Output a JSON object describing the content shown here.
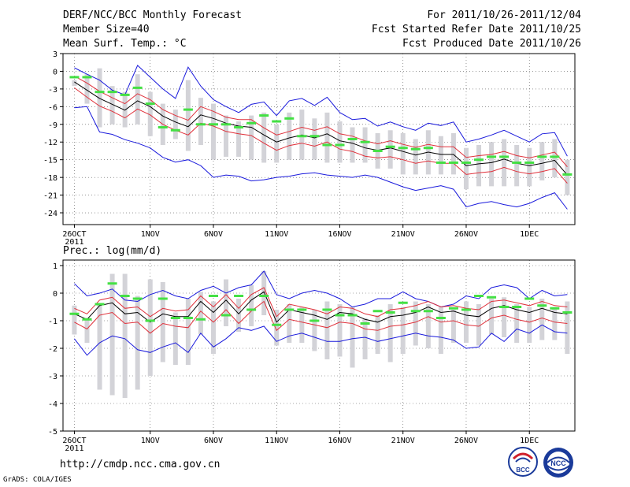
{
  "header": {
    "title": "DERF/NCC/BCC Monthly Forecast",
    "member_size": "Member Size=40",
    "variable": "Mean Surf. Temp.: °C",
    "period": "For 2011/10/26-2011/12/04",
    "start_ref": "Fcst Started Refer Date 2011/10/25",
    "produced": "Fcst Produced Date 2011/10/26"
  },
  "footer": {
    "url": "http://cmdp.ncc.cma.gov.cn",
    "grads": "GrADS: COLA/IGES",
    "logo_bcc": "BCC",
    "logo_ncc": "NCC"
  },
  "colors": {
    "box": "#d3d3d8",
    "green": "#44e044",
    "red": "#e0303a",
    "blue": "#1a1adc",
    "mean": "#000000"
  },
  "chart_data": [
    {
      "type": "box-line",
      "title": "Mean Surf. Temp.: °C",
      "x_tick_labels": [
        "26OCT",
        "1NOV",
        "6NOV",
        "11NOV",
        "16NOV",
        "21NOV",
        "26NOV",
        "1DEC"
      ],
      "x_year_label": "2011",
      "ylim": [
        -26,
        3
      ],
      "y_ticks": [
        3,
        0,
        -3,
        -6,
        -9,
        -12,
        -15,
        -18,
        -21,
        -24
      ],
      "days": 40,
      "ensemble_mean": [
        -1.8,
        -3.2,
        -4.6,
        -5.6,
        -6.6,
        -5.0,
        -6.0,
        -7.6,
        -8.6,
        -9.4,
        -7.4,
        -8.0,
        -8.8,
        -9.3,
        -9.5,
        -10.8,
        -12.0,
        -11.3,
        -10.8,
        -11.3,
        -10.6,
        -11.8,
        -12.2,
        -13.0,
        -13.4,
        -13.0,
        -13.6,
        -14.2,
        -13.7,
        -14.1,
        -14.1,
        -16.0,
        -15.7,
        -15.5,
        -14.9,
        -15.6,
        -16.0,
        -15.6,
        -15.1,
        -17.6
      ],
      "upper_bound": [
        -0.8,
        -2.0,
        -3.4,
        -4.5,
        -5.5,
        -3.8,
        -4.8,
        -6.5,
        -7.5,
        -8.3,
        -6.0,
        -6.8,
        -7.8,
        -8.2,
        -8.2,
        -9.6,
        -10.8,
        -10.2,
        -9.5,
        -10.0,
        -9.4,
        -10.6,
        -11.0,
        -11.8,
        -12.3,
        -11.8,
        -12.4,
        -12.9,
        -12.4,
        -12.8,
        -12.8,
        -14.6,
        -14.3,
        -14.1,
        -13.6,
        -14.3,
        -14.7,
        -14.2,
        -13.7,
        -16.2
      ],
      "lower_bound": [
        -2.8,
        -4.4,
        -5.9,
        -6.8,
        -7.9,
        -6.4,
        -7.4,
        -9.0,
        -10.0,
        -10.8,
        -8.8,
        -9.3,
        -10.2,
        -10.6,
        -10.9,
        -12.2,
        -13.4,
        -12.6,
        -12.2,
        -12.7,
        -12.0,
        -13.2,
        -13.6,
        -14.4,
        -14.7,
        -14.5,
        -15.0,
        -15.6,
        -15.2,
        -15.6,
        -15.6,
        -17.5,
        -17.2,
        -17.0,
        -16.3,
        -17.0,
        -17.4,
        -17.0,
        -16.5,
        -19.0
      ],
      "ensemble_max": [
        0.6,
        -0.5,
        -1.5,
        -3.2,
        -4.0,
        1.0,
        -1.0,
        -3.0,
        -4.6,
        0.7,
        -2.5,
        -4.8,
        -6.0,
        -7.0,
        -5.6,
        -5.2,
        -7.5,
        -5.0,
        -4.6,
        -5.8,
        -4.4,
        -7.0,
        -8.2,
        -8.0,
        -9.3,
        -8.6,
        -9.4,
        -10.0,
        -8.8,
        -9.2,
        -8.6,
        -12.0,
        -11.5,
        -10.8,
        -10.0,
        -11.0,
        -12.0,
        -10.6,
        -10.4,
        -14.4
      ],
      "ensemble_min": [
        -6.2,
        -6.0,
        -10.3,
        -10.7,
        -11.6,
        -12.2,
        -13.0,
        -14.6,
        -15.4,
        -15.0,
        -16.0,
        -18.0,
        -17.6,
        -17.8,
        -18.6,
        -18.4,
        -18.0,
        -17.8,
        -17.4,
        -17.2,
        -17.6,
        -17.8,
        -18.0,
        -17.6,
        -18.0,
        -18.8,
        -19.6,
        -20.2,
        -19.8,
        -19.4,
        -20.0,
        -23.0,
        -22.4,
        -22.1,
        -22.6,
        -23.0,
        -22.4,
        -21.4,
        -20.6,
        -23.4
      ],
      "box_top": [
        -1.5,
        -0.5,
        0.5,
        -2.5,
        -3.5,
        -0.5,
        -3.5,
        -5.5,
        -6.5,
        -1.5,
        -4.5,
        -5.5,
        -7.5,
        -8.5,
        -7.5,
        -7.0,
        -9.0,
        -7.0,
        -6.5,
        -8.0,
        -7.0,
        -8.5,
        -9.5,
        -9.5,
        -10.5,
        -10.0,
        -10.5,
        -11.5,
        -10.0,
        -11.0,
        -10.5,
        -13.0,
        -12.5,
        -12.0,
        -11.5,
        -12.5,
        -13.0,
        -12.0,
        -11.5,
        -15.0
      ],
      "box_bottom": [
        -2.5,
        -5.5,
        -9.5,
        -9.0,
        -9.5,
        -9.0,
        -11.0,
        -12.5,
        -11.5,
        -13.5,
        -12.5,
        -15.0,
        -14.5,
        -14.5,
        -15.0,
        -15.5,
        -15.5,
        -15.0,
        -15.0,
        -15.0,
        -15.5,
        -15.5,
        -15.5,
        -15.5,
        -16.5,
        -16.5,
        -17.5,
        -17.5,
        -17.5,
        -17.5,
        -17.5,
        -20.0,
        -19.5,
        -19.5,
        -19.5,
        -19.5,
        -19.5,
        -18.5,
        -18.0,
        -21.0
      ],
      "marker": [
        -1.0,
        -1.0,
        -3.5,
        -3.5,
        -4.0,
        -2.8,
        -5.5,
        -9.5,
        -10.0,
        -6.5,
        -9.0,
        -9.0,
        -9.0,
        -9.5,
        -8.8,
        -7.5,
        -8.5,
        -8.0,
        -11.0,
        -11.0,
        -12.5,
        -12.5,
        -11.5,
        -12.0,
        -13.5,
        -12.8,
        -13.0,
        -13.2,
        -13.0,
        -15.5,
        -15.5,
        -15.5,
        -15.0,
        -14.5,
        -14.5,
        -15.5,
        -15.5,
        -14.5,
        -14.5,
        -17.5
      ]
    },
    {
      "type": "box-line",
      "title": "Prec.: log(mm/d)",
      "x_tick_labels": [
        "26OCT",
        "1NOV",
        "6NOV",
        "11NOV",
        "16NOV",
        "21NOV",
        "26NOV",
        "1DEC"
      ],
      "x_year_label": "2011",
      "ylim": [
        -5,
        1.2
      ],
      "y_ticks": [
        1,
        0,
        -1,
        -2,
        -3,
        -4,
        -5
      ],
      "days": 40,
      "ensemble_mean": [
        -0.75,
        -0.95,
        -0.45,
        -0.35,
        -0.75,
        -0.7,
        -1.05,
        -0.75,
        -0.85,
        -0.85,
        -0.3,
        -0.7,
        -0.25,
        -0.75,
        -0.25,
        0.05,
        -1.05,
        -0.6,
        -0.7,
        -0.8,
        -0.95,
        -0.7,
        -0.75,
        -0.95,
        -1.05,
        -0.85,
        -0.8,
        -0.7,
        -0.5,
        -0.7,
        -0.65,
        -0.8,
        -0.85,
        -0.55,
        -0.45,
        -0.6,
        -0.7,
        -0.55,
        -0.7,
        -0.75
      ],
      "upper_bound": [
        -0.55,
        -0.75,
        -0.25,
        -0.15,
        -0.55,
        -0.5,
        -0.85,
        -0.55,
        -0.65,
        -0.6,
        -0.1,
        -0.5,
        -0.05,
        -0.55,
        -0.05,
        0.2,
        -0.85,
        -0.4,
        -0.5,
        -0.6,
        -0.75,
        -0.5,
        -0.55,
        -0.75,
        -0.85,
        -0.6,
        -0.55,
        -0.45,
        -0.3,
        -0.5,
        -0.45,
        -0.55,
        -0.6,
        -0.3,
        -0.25,
        -0.35,
        -0.45,
        -0.3,
        -0.45,
        -0.5
      ],
      "lower_bound": [
        -1.05,
        -1.3,
        -0.8,
        -0.7,
        -1.1,
        -1.05,
        -1.45,
        -1.1,
        -1.2,
        -1.25,
        -0.65,
        -1.05,
        -0.6,
        -1.1,
        -0.65,
        -0.3,
        -1.35,
        -0.95,
        -1.05,
        -1.15,
        -1.25,
        -1.05,
        -1.1,
        -1.3,
        -1.35,
        -1.2,
        -1.15,
        -1.05,
        -0.85,
        -1.05,
        -1.0,
        -1.15,
        -1.2,
        -0.9,
        -0.8,
        -0.95,
        -1.05,
        -0.9,
        -1.05,
        -1.1
      ],
      "ensemble_max": [
        0.35,
        -0.1,
        0.0,
        0.15,
        -0.25,
        -0.3,
        -0.05,
        0.1,
        -0.1,
        -0.2,
        0.1,
        0.25,
        0.0,
        0.2,
        0.3,
        0.8,
        -0.05,
        -0.2,
        0.0,
        0.1,
        0.0,
        -0.2,
        -0.5,
        -0.4,
        -0.2,
        -0.2,
        0.05,
        -0.2,
        -0.3,
        -0.5,
        -0.4,
        -0.1,
        -0.2,
        0.2,
        0.3,
        0.2,
        -0.2,
        0.1,
        -0.1,
        -0.05
      ],
      "ensemble_min": [
        -1.65,
        -2.25,
        -1.8,
        -1.55,
        -1.65,
        -2.05,
        -2.15,
        -1.95,
        -1.8,
        -2.15,
        -1.45,
        -1.95,
        -1.65,
        -1.25,
        -1.35,
        -1.2,
        -1.75,
        -1.55,
        -1.45,
        -1.6,
        -1.75,
        -1.75,
        -1.65,
        -1.6,
        -1.75,
        -1.65,
        -1.55,
        -1.45,
        -1.55,
        -1.6,
        -1.7,
        -2.0,
        -1.95,
        -1.45,
        -1.75,
        -1.3,
        -1.45,
        -1.15,
        -1.4,
        -1.45
      ],
      "box_top": [
        -0.45,
        -0.9,
        -0.4,
        0.7,
        0.7,
        -0.1,
        0.5,
        0.4,
        -0.7,
        -0.2,
        0.05,
        -0.3,
        0.5,
        -0.2,
        0.3,
        0.8,
        -0.6,
        -0.4,
        -0.5,
        -0.6,
        -0.3,
        -0.4,
        -0.5,
        -0.9,
        -0.8,
        -0.4,
        -0.5,
        -0.3,
        -0.4,
        -0.5,
        -0.6,
        -0.3,
        -0.4,
        -0.2,
        -0.15,
        -0.4,
        -0.5,
        -0.2,
        -0.5,
        -0.3
      ],
      "box_bottom": [
        -1.5,
        -1.8,
        -3.5,
        -3.7,
        -3.8,
        -3.5,
        -3.0,
        -2.5,
        -2.6,
        -2.6,
        -1.5,
        -2.2,
        -1.2,
        -1.4,
        -1.2,
        -0.8,
        -1.9,
        -1.8,
        -1.8,
        -2.1,
        -2.4,
        -2.3,
        -2.7,
        -2.4,
        -2.2,
        -2.5,
        -2.2,
        -1.9,
        -2.0,
        -2.2,
        -1.8,
        -1.8,
        -1.9,
        -1.5,
        -1.6,
        -1.8,
        -1.8,
        -1.7,
        -1.7,
        -2.2
      ],
      "marker": [
        -0.75,
        -0.95,
        -0.4,
        0.35,
        -0.1,
        -0.2,
        -1.0,
        -0.2,
        -0.9,
        -0.9,
        -0.95,
        -0.1,
        -0.8,
        -0.1,
        -0.6,
        -0.1,
        -1.15,
        -0.6,
        -0.6,
        -1.0,
        -0.6,
        -0.8,
        -0.8,
        -1.1,
        -0.65,
        -0.7,
        -0.35,
        -0.65,
        -0.65,
        -0.9,
        -0.55,
        -0.6,
        -0.1,
        -0.15,
        -0.5,
        -0.5,
        -0.2,
        -0.45,
        -0.55,
        -0.7
      ]
    }
  ]
}
